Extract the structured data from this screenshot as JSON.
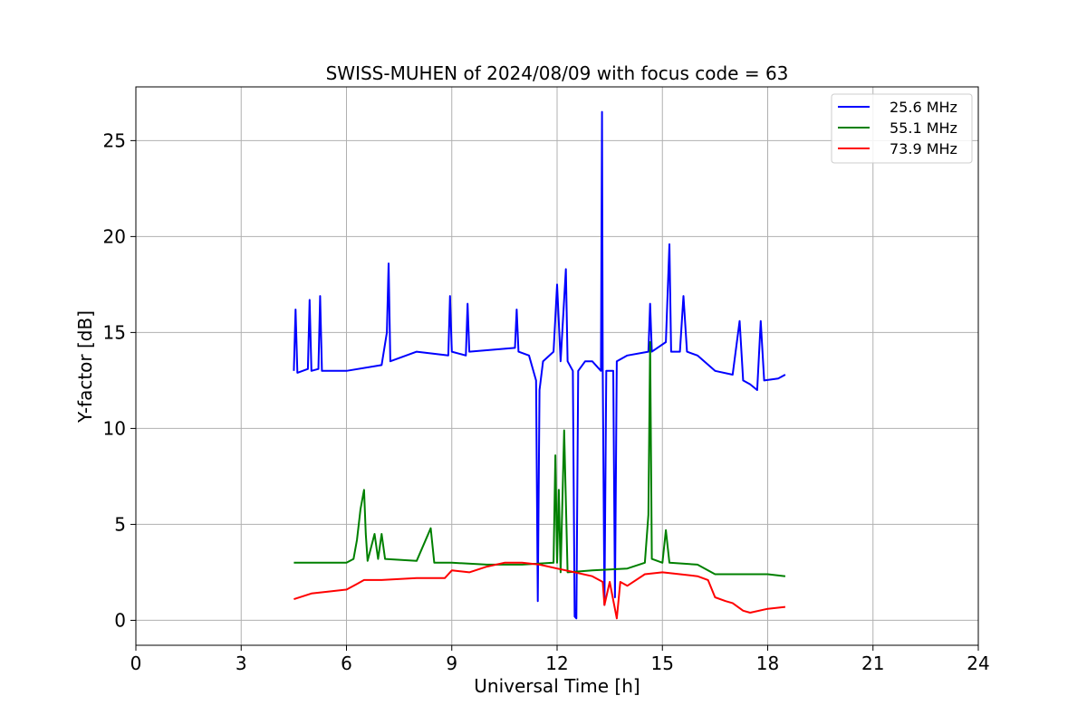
{
  "chart_data": {
    "type": "line",
    "title": "SWISS-MUHEN of 2024/08/09 with focus code = 63",
    "xlabel": "Universal Time [h]",
    "ylabel": "Y-factor [dB]",
    "xlim": [
      0,
      24
    ],
    "ylim": [
      -1.3,
      27.8
    ],
    "xticks": [
      0,
      3,
      6,
      9,
      12,
      15,
      18,
      21,
      24
    ],
    "yticks": [
      0,
      5,
      10,
      15,
      20,
      25
    ],
    "grid": true,
    "legend_position": "top-right",
    "series": [
      {
        "name": "25.6 MHz",
        "color": "#0000ff",
        "points": [
          [
            4.5,
            13.0
          ],
          [
            4.55,
            16.2
          ],
          [
            4.6,
            12.9
          ],
          [
            4.9,
            13.1
          ],
          [
            4.95,
            16.7
          ],
          [
            5.0,
            13.0
          ],
          [
            5.2,
            13.1
          ],
          [
            5.25,
            16.9
          ],
          [
            5.3,
            13.0
          ],
          [
            6.0,
            13.0
          ],
          [
            7.0,
            13.3
          ],
          [
            7.15,
            15.0
          ],
          [
            7.2,
            18.6
          ],
          [
            7.25,
            13.5
          ],
          [
            8.0,
            14.0
          ],
          [
            8.9,
            13.8
          ],
          [
            8.95,
            16.9
          ],
          [
            9.0,
            14.0
          ],
          [
            9.4,
            13.8
          ],
          [
            9.45,
            16.5
          ],
          [
            9.5,
            14.0
          ],
          [
            10.8,
            14.2
          ],
          [
            10.85,
            16.2
          ],
          [
            10.9,
            14.0
          ],
          [
            11.2,
            13.8
          ],
          [
            11.4,
            12.5
          ],
          [
            11.45,
            1.0
          ],
          [
            11.5,
            12.0
          ],
          [
            11.6,
            13.5
          ],
          [
            11.9,
            14.0
          ],
          [
            12.0,
            17.5
          ],
          [
            12.1,
            13.5
          ],
          [
            12.25,
            18.3
          ],
          [
            12.3,
            13.5
          ],
          [
            12.45,
            13.0
          ],
          [
            12.5,
            0.2
          ],
          [
            12.55,
            0.1
          ],
          [
            12.6,
            13.0
          ],
          [
            12.8,
            13.5
          ],
          [
            13.0,
            13.5
          ],
          [
            13.25,
            13.0
          ],
          [
            13.28,
            26.5
          ],
          [
            13.3,
            13.0
          ],
          [
            13.35,
            0.8
          ],
          [
            13.4,
            13.0
          ],
          [
            13.6,
            13.0
          ],
          [
            13.65,
            1.2
          ],
          [
            13.7,
            13.5
          ],
          [
            14.0,
            13.8
          ],
          [
            14.6,
            14.0
          ],
          [
            14.65,
            16.5
          ],
          [
            14.7,
            14.0
          ],
          [
            15.1,
            14.5
          ],
          [
            15.2,
            19.6
          ],
          [
            15.25,
            14.0
          ],
          [
            15.5,
            14.0
          ],
          [
            15.6,
            16.9
          ],
          [
            15.7,
            14.0
          ],
          [
            16.0,
            13.8
          ],
          [
            16.5,
            13.0
          ],
          [
            17.0,
            12.8
          ],
          [
            17.2,
            15.6
          ],
          [
            17.3,
            12.5
          ],
          [
            17.5,
            12.3
          ],
          [
            17.7,
            12.0
          ],
          [
            17.8,
            15.6
          ],
          [
            17.9,
            12.5
          ],
          [
            18.3,
            12.6
          ],
          [
            18.5,
            12.8
          ]
        ]
      },
      {
        "name": "55.1 MHz",
        "color": "#008000",
        "points": [
          [
            4.5,
            3.0
          ],
          [
            5.0,
            3.0
          ],
          [
            6.0,
            3.0
          ],
          [
            6.2,
            3.2
          ],
          [
            6.3,
            4.2
          ],
          [
            6.4,
            5.8
          ],
          [
            6.5,
            6.8
          ],
          [
            6.55,
            4.5
          ],
          [
            6.6,
            3.1
          ],
          [
            6.8,
            4.5
          ],
          [
            6.9,
            3.2
          ],
          [
            7.0,
            4.5
          ],
          [
            7.1,
            3.2
          ],
          [
            8.0,
            3.1
          ],
          [
            8.4,
            4.8
          ],
          [
            8.5,
            3.0
          ],
          [
            9.0,
            3.0
          ],
          [
            10.0,
            2.9
          ],
          [
            11.0,
            2.9
          ],
          [
            11.9,
            3.0
          ],
          [
            11.95,
            8.6
          ],
          [
            12.0,
            3.0
          ],
          [
            12.05,
            6.8
          ],
          [
            12.1,
            2.5
          ],
          [
            12.2,
            9.9
          ],
          [
            12.3,
            2.5
          ],
          [
            13.0,
            2.6
          ],
          [
            14.0,
            2.7
          ],
          [
            14.5,
            3.0
          ],
          [
            14.6,
            5.5
          ],
          [
            14.65,
            14.5
          ],
          [
            14.7,
            3.2
          ],
          [
            15.0,
            3.0
          ],
          [
            15.1,
            4.7
          ],
          [
            15.2,
            3.0
          ],
          [
            16.0,
            2.9
          ],
          [
            16.5,
            2.4
          ],
          [
            17.5,
            2.4
          ],
          [
            18.0,
            2.4
          ],
          [
            18.5,
            2.3
          ]
        ]
      },
      {
        "name": "73.9 MHz",
        "color": "#ff0000",
        "points": [
          [
            4.5,
            1.1
          ],
          [
            5.0,
            1.4
          ],
          [
            5.5,
            1.5
          ],
          [
            6.0,
            1.6
          ],
          [
            6.3,
            1.9
          ],
          [
            6.5,
            2.1
          ],
          [
            7.0,
            2.1
          ],
          [
            8.0,
            2.2
          ],
          [
            8.8,
            2.2
          ],
          [
            9.0,
            2.6
          ],
          [
            9.5,
            2.5
          ],
          [
            10.0,
            2.8
          ],
          [
            10.5,
            3.0
          ],
          [
            11.0,
            3.0
          ],
          [
            11.5,
            2.9
          ],
          [
            12.0,
            2.7
          ],
          [
            12.5,
            2.5
          ],
          [
            13.0,
            2.3
          ],
          [
            13.3,
            2.0
          ],
          [
            13.35,
            0.8
          ],
          [
            13.5,
            2.0
          ],
          [
            13.7,
            0.1
          ],
          [
            13.8,
            2.0
          ],
          [
            14.0,
            1.8
          ],
          [
            14.5,
            2.4
          ],
          [
            15.0,
            2.5
          ],
          [
            15.5,
            2.4
          ],
          [
            16.0,
            2.3
          ],
          [
            16.3,
            2.1
          ],
          [
            16.5,
            1.2
          ],
          [
            16.8,
            1.0
          ],
          [
            17.0,
            0.9
          ],
          [
            17.3,
            0.5
          ],
          [
            17.5,
            0.4
          ],
          [
            18.0,
            0.6
          ],
          [
            18.5,
            0.7
          ]
        ]
      }
    ]
  }
}
